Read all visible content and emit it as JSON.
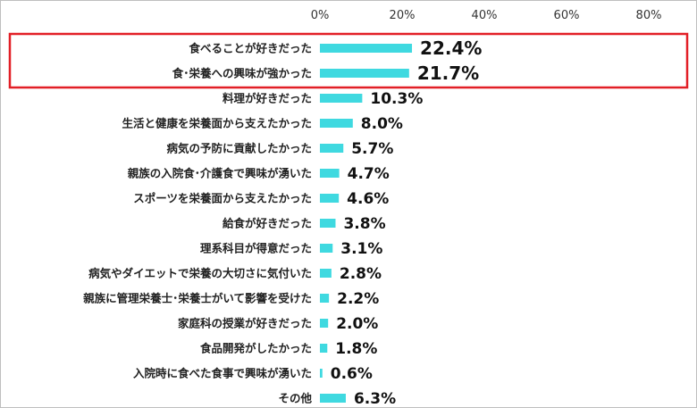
{
  "colors": {
    "bar": "#3fd9e0",
    "highlight_box": "#e21f26"
  },
  "chart_data": {
    "type": "bar",
    "orientation": "horizontal",
    "categories": [
      "食べることが好きだった",
      "食･栄養への興味が強かった",
      "料理が好きだった",
      "生活と健康を栄養面から支えたかった",
      "病気の予防に貢献したかった",
      "親族の入院食･介護食で興味が湧いた",
      "スポーツを栄養面から支えたかった",
      "給食が好きだった",
      "理系科目が得意だった",
      "病気やダイエットで栄養の大切さに気付いた",
      "親族に管理栄養士･栄養士がいて影響を受けた",
      "家庭科の授業が好きだった",
      "食品開発がしたかった",
      "入院時に食べた食事で興味が湧いた",
      "その他"
    ],
    "values": [
      22.4,
      21.7,
      10.3,
      8.0,
      5.7,
      4.7,
      4.6,
      3.8,
      3.1,
      2.8,
      2.2,
      2.0,
      1.8,
      0.6,
      6.3
    ],
    "value_labels": [
      "22.4%",
      "21.7%",
      "10.3%",
      "8.0%",
      "5.7%",
      "4.7%",
      "4.6%",
      "3.8%",
      "3.1%",
      "2.8%",
      "2.2%",
      "2.0%",
      "1.8%",
      "0.6%",
      "6.3%"
    ],
    "x_ticks": [
      "0%",
      "20%",
      "40%",
      "60%",
      "80%"
    ],
    "xlim": [
      0,
      80
    ],
    "axis_position": "top",
    "grid": false,
    "highlighted_categories": [
      0,
      1
    ],
    "title": "",
    "xlabel": "",
    "ylabel": ""
  }
}
